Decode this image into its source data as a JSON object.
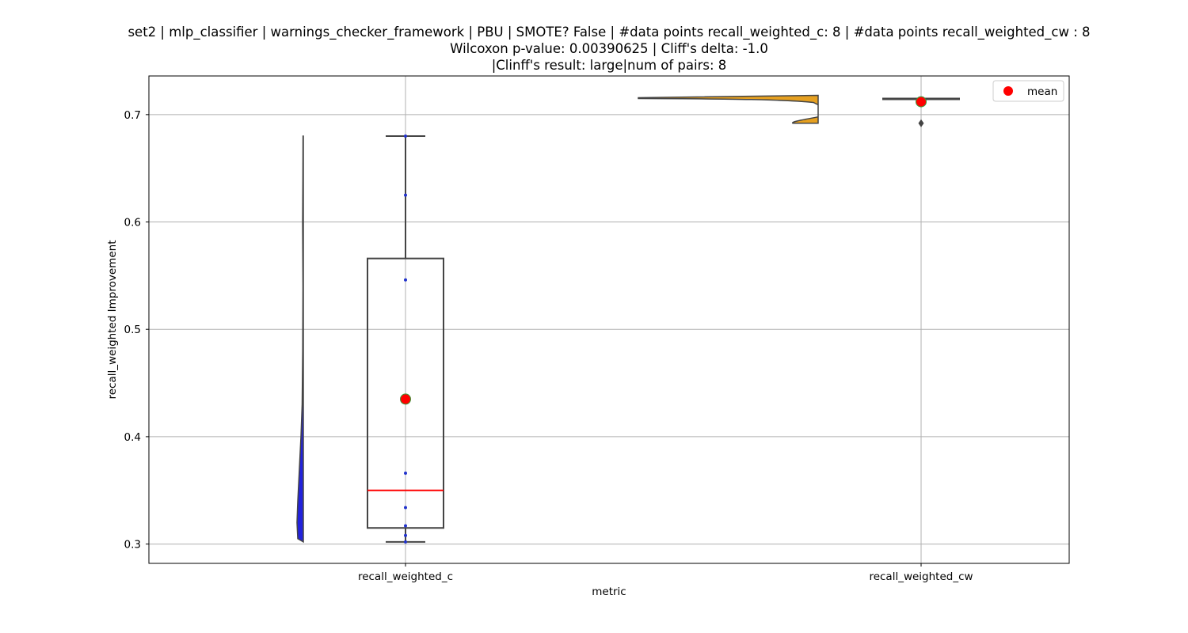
{
  "chart_data": {
    "type": "box+violin",
    "title_lines": [
      "set2 | mlp_classifier | warnings_checker_framework | PBU | SMOTE? False | #data points recall_weighted_c: 8 | #data points recall_weighted_cw : 8",
      "Wilcoxon p-value: 0.00390625 | Cliff's delta: -1.0",
      "|Clinff's result: large|num of pairs: 8"
    ],
    "xlabel": "metric",
    "ylabel": "recall_weighted Improvement",
    "categories": [
      "recall_weighted_c",
      "recall_weighted_cw"
    ],
    "ylim": [
      0.282,
      0.736
    ],
    "yticks": [
      0.3,
      0.4,
      0.5,
      0.6,
      0.7
    ],
    "ytick_labels": [
      "0.3",
      "0.4",
      "0.5",
      "0.6",
      "0.7"
    ],
    "grid": true,
    "legend": {
      "placement": "top-right",
      "entries": [
        "mean"
      ]
    },
    "colors": {
      "violin_c": "#2222dd",
      "violin_cw": "#e6a020",
      "box_edge": "#444444",
      "median": "#ff0000",
      "mean_marker": "#ff0000",
      "mean_marker_edge": "#3a9a3a",
      "points": "#2233cc",
      "grid": "#b0b0b0"
    },
    "series": [
      {
        "name": "recall_weighted_c",
        "points": [
          0.302,
          0.308,
          0.317,
          0.334,
          0.366,
          0.546,
          0.625,
          0.68
        ],
        "box": {
          "whisker_low": 0.302,
          "q1": 0.315,
          "median": 0.35,
          "q3": 0.566,
          "whisker_high": 0.68
        },
        "mean": 0.435,
        "violin_range": [
          0.302,
          0.68
        ]
      },
      {
        "name": "recall_weighted_cw",
        "points": [
          0.692,
          0.715,
          0.715,
          0.715,
          0.715,
          0.715,
          0.715,
          0.715
        ],
        "box": {
          "whisker_low": 0.715,
          "q1": 0.715,
          "median": 0.715,
          "q3": 0.715,
          "whisker_high": 0.715
        },
        "outliers": [
          0.692
        ],
        "mean": 0.712,
        "violin_range": [
          0.692,
          0.715
        ]
      }
    ]
  }
}
